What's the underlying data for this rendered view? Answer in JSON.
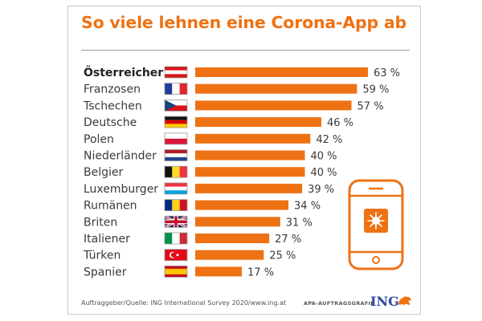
{
  "title": "So viele lehnen eine Corona-App ab",
  "source": "Auftraggeber/Quelle: ING International Survey 2020/www.ing.at",
  "agency": "APA-AUFTRAGSGRAFIK",
  "brand": "ING",
  "colors": {
    "accent": "#ee7214",
    "text": "#3a3a3a",
    "brand_blue": "#2f4b9b"
  },
  "chart_data": {
    "type": "bar",
    "orientation": "horizontal",
    "title": "So viele lehnen eine Corona-App ab",
    "xlabel": "",
    "ylabel": "",
    "xlim": [
      0,
      63
    ],
    "unit": "%",
    "grid": false,
    "legend": "none",
    "categories": [
      "Österreicher",
      "Franzosen",
      "Tschechen",
      "Deutsche",
      "Polen",
      "Niederländer",
      "Belgier",
      "Luxemburger",
      "Rumänen",
      "Briten",
      "Italiener",
      "Türken",
      "Spanier"
    ],
    "values": [
      63,
      59,
      57,
      46,
      42,
      40,
      40,
      39,
      34,
      31,
      27,
      25,
      17
    ],
    "value_labels": [
      "63 %",
      "59 %",
      "57 %",
      "46 %",
      "42 %",
      "40 %",
      "40 %",
      "39 %",
      "34 %",
      "31 %",
      "27 %",
      "25 %",
      "17 %"
    ],
    "flags": [
      "austria-flag-icon",
      "france-flag-icon",
      "czechia-flag-icon",
      "germany-flag-icon",
      "poland-flag-icon",
      "netherlands-flag-icon",
      "belgium-flag-icon",
      "luxembourg-flag-icon",
      "romania-flag-icon",
      "uk-flag-icon",
      "italy-flag-icon",
      "turkey-flag-icon",
      "spain-flag-icon"
    ]
  }
}
